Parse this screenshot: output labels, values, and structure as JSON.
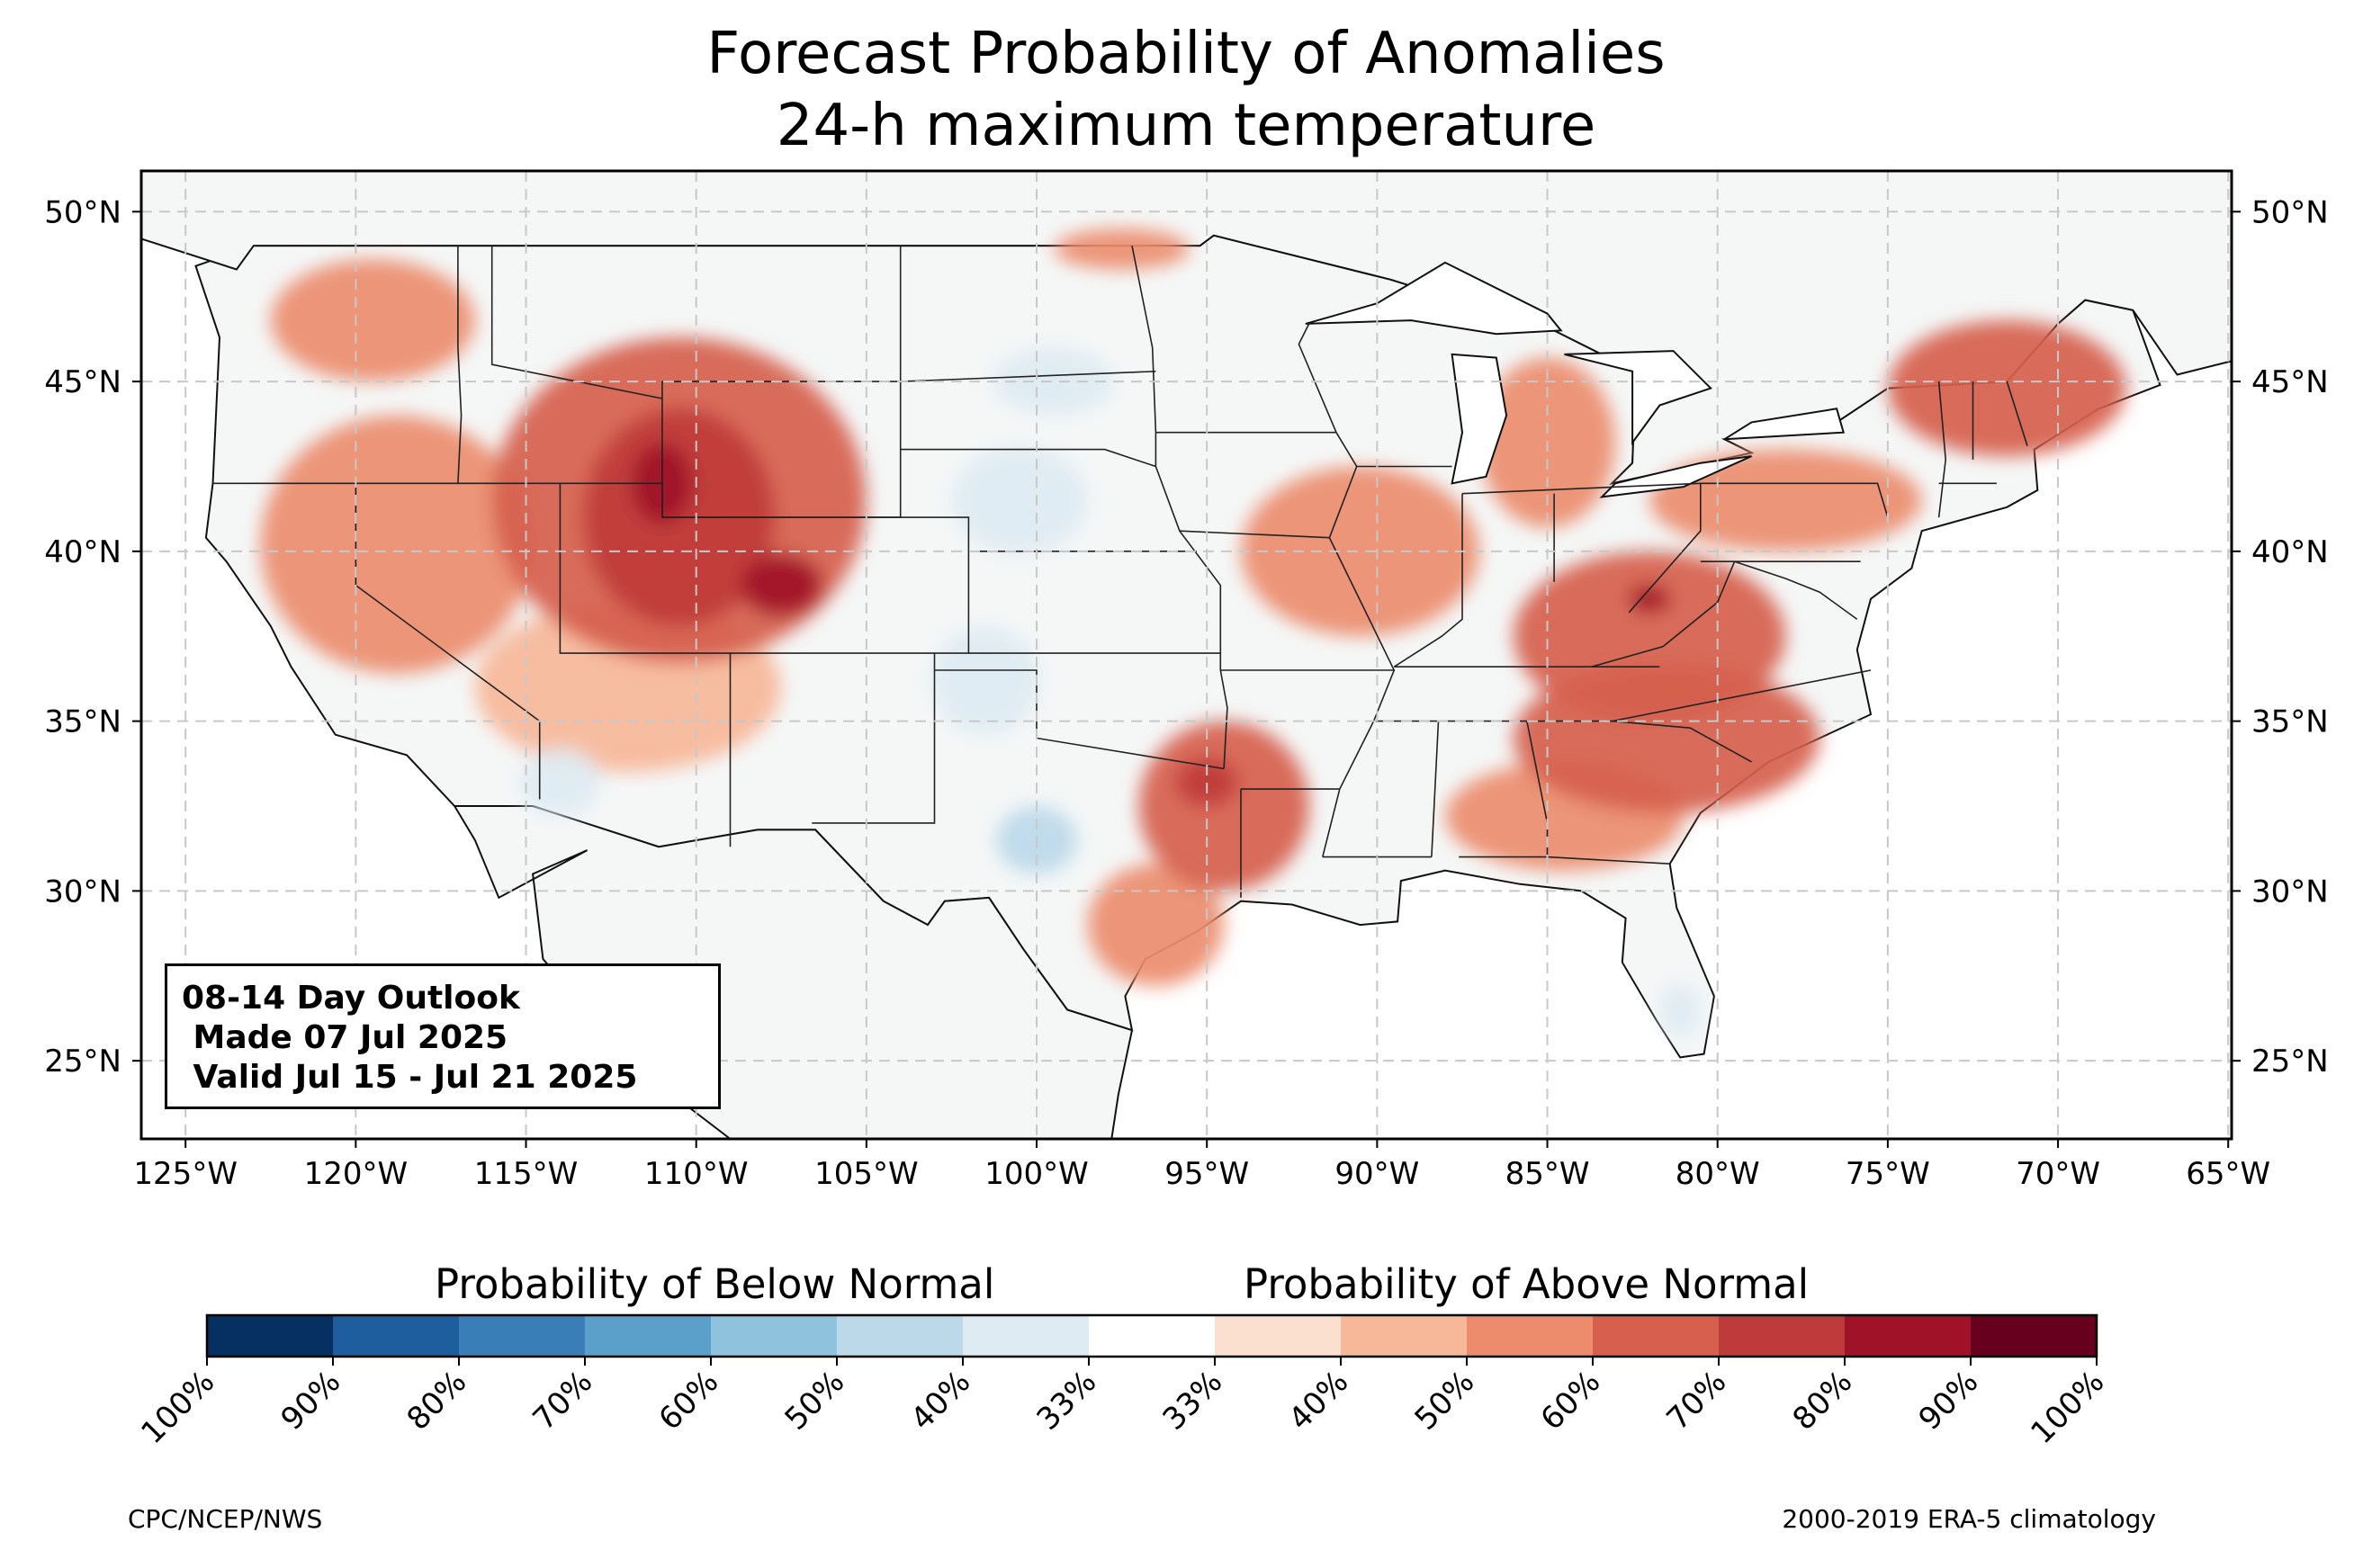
{
  "title_line1": "Forecast Probability of Anomalies",
  "title_line2": "24-h maximum temperature",
  "map": {
    "extent": {
      "lon_min": -126.3,
      "lon_max": -64.9,
      "lat_min": 22.7,
      "lat_max": 51.2
    },
    "grid": true,
    "lon_ticks": [
      {
        "lon": -125,
        "label": "125°W"
      },
      {
        "lon": -120,
        "label": "120°W"
      },
      {
        "lon": -115,
        "label": "115°W"
      },
      {
        "lon": -110,
        "label": "110°W"
      },
      {
        "lon": -105,
        "label": "105°W"
      },
      {
        "lon": -100,
        "label": "100°W"
      },
      {
        "lon": -95,
        "label": "95°W"
      },
      {
        "lon": -90,
        "label": "90°W"
      },
      {
        "lon": -85,
        "label": "85°W"
      },
      {
        "lon": -80,
        "label": "80°W"
      },
      {
        "lon": -75,
        "label": "75°W"
      },
      {
        "lon": -70,
        "label": "70°W"
      },
      {
        "lon": -65,
        "label": "65°W"
      }
    ],
    "lat_ticks": [
      {
        "lat": 50,
        "label": "50°N"
      },
      {
        "lat": 45,
        "label": "45°N"
      },
      {
        "lat": 40,
        "label": "40°N"
      },
      {
        "lat": 35,
        "label": "35°N"
      },
      {
        "lat": 30,
        "label": "30°N"
      },
      {
        "lat": 25,
        "label": "25°N"
      }
    ],
    "land_color": "#f5f7f7",
    "ocean_color": "#ffffff",
    "above_normal_areas": [
      {
        "region": "Pacific Northwest",
        "lon": -119.5,
        "lat": 46.8,
        "rx": 3.0,
        "ry": 1.8,
        "prob": 50
      },
      {
        "region": "California / Great Basin",
        "lon": -118.8,
        "lat": 40.2,
        "rx": 4.0,
        "ry": 3.8,
        "prob": 50
      },
      {
        "region": "Northern Rockies / Central Rockies",
        "lon": -110.5,
        "lat": 41.5,
        "rx": 5.5,
        "ry": 4.8,
        "prob": 60
      },
      {
        "region": "Wyoming / Utah / Colorado core",
        "lon": -110.5,
        "lat": 41.0,
        "rx": 2.8,
        "ry": 3.2,
        "prob": 70
      },
      {
        "region": "Western Wyoming peak",
        "lon": -111.0,
        "lat": 42.0,
        "rx": 0.9,
        "ry": 1.2,
        "prob": 80
      },
      {
        "region": "Colorado peak",
        "lon": -107.5,
        "lat": 39.0,
        "rx": 1.2,
        "ry": 0.9,
        "prob": 80
      },
      {
        "region": "Southwest / Arizona",
        "lon": -112.0,
        "lat": 36.0,
        "rx": 4.5,
        "ry": 2.5,
        "prob": 40
      },
      {
        "region": "Northern Plains border",
        "lon": -97.5,
        "lat": 48.9,
        "rx": 2.0,
        "ry": 0.6,
        "prob": 50
      },
      {
        "region": "Central Midwest",
        "lon": -90.5,
        "lat": 40.0,
        "rx": 3.5,
        "ry": 2.5,
        "prob": 50
      },
      {
        "region": "Ohio Valley / Appalachians",
        "lon": -82.0,
        "lat": 37.5,
        "rx": 4.0,
        "ry": 2.5,
        "prob": 60
      },
      {
        "region": "West Virginia peak",
        "lon": -82.0,
        "lat": 38.6,
        "rx": 0.6,
        "ry": 0.4,
        "prob": 80
      },
      {
        "region": "Tennessee / Carolinas",
        "lon": -81.5,
        "lat": 34.5,
        "rx": 4.5,
        "ry": 2.2,
        "prob": 60
      },
      {
        "region": "Southeast Georgia / Alabama",
        "lon": -84.5,
        "lat": 32.2,
        "rx": 3.5,
        "ry": 1.6,
        "prob": 50
      },
      {
        "region": "Great Lakes / Michigan",
        "lon": -85.0,
        "lat": 43.2,
        "rx": 2.0,
        "ry": 2.5,
        "prob": 50
      },
      {
        "region": "Pennsylvania / New York",
        "lon": -78.0,
        "lat": 41.5,
        "rx": 4.0,
        "ry": 1.5,
        "prob": 50
      },
      {
        "region": "Northern New England",
        "lon": -71.5,
        "lat": 44.8,
        "rx": 3.5,
        "ry": 2.0,
        "prob": 60
      },
      {
        "region": "East Texas / Louisiana",
        "lon": -94.5,
        "lat": 32.5,
        "rx": 2.5,
        "ry": 2.5,
        "prob": 60
      },
      {
        "region": "East Texas peak",
        "lon": -95.0,
        "lat": 33.2,
        "rx": 0.9,
        "ry": 0.7,
        "prob": 70
      },
      {
        "region": "Texas Gulf Coast",
        "lon": -96.5,
        "lat": 29.0,
        "rx": 2.0,
        "ry": 1.8,
        "prob": 50
      }
    ],
    "below_normal_areas": [
      {
        "region": "Dakotas",
        "lon": -99.5,
        "lat": 45.0,
        "rx": 1.8,
        "ry": 1.0,
        "prob": 40
      },
      {
        "region": "Nebraska / Kansas",
        "lon": -100.5,
        "lat": 41.5,
        "rx": 2.0,
        "ry": 1.6,
        "prob": 40
      },
      {
        "region": "Western Oklahoma / Texas Panhandle",
        "lon": -101.5,
        "lat": 36.2,
        "rx": 1.6,
        "ry": 1.6,
        "prob": 40
      },
      {
        "region": "Central Texas",
        "lon": -100.0,
        "lat": 31.5,
        "rx": 1.2,
        "ry": 1.0,
        "prob": 50
      },
      {
        "region": "Southern Arizona",
        "lon": -114.0,
        "lat": 33.2,
        "rx": 1.2,
        "ry": 1.0,
        "prob": 40
      },
      {
        "region": "South Florida",
        "lon": -81.1,
        "lat": 26.5,
        "rx": 0.6,
        "ry": 0.8,
        "prob": 40
      }
    ]
  },
  "colorbar": {
    "below_title": "Probability of Below Normal",
    "above_title": "Probability of Above Normal",
    "colors": [
      "#053061",
      "#1e5e9e",
      "#3a7eb8",
      "#5aa0ca",
      "#8fc2dd",
      "#bcd9ea",
      "#deebf2",
      "#ffffff",
      "#fbe0d0",
      "#f7b799",
      "#ec8c6c",
      "#d6604d",
      "#bf3a3a",
      "#9f1228",
      "#67001f"
    ],
    "labels": [
      "100%",
      "90%",
      "80%",
      "70%",
      "60%",
      "50%",
      "40%",
      "33%",
      "33%",
      "40%",
      "50%",
      "60%",
      "70%",
      "80%",
      "90%",
      "100%"
    ]
  },
  "infobox": {
    "line1": "08-14 Day Outlook",
    "line2": " Made 07 Jul 2025",
    "line3": " Valid Jul 15 - Jul 21 2025"
  },
  "credit_left": "CPC/NCEP/NWS",
  "credit_right": "2000-2019 ERA-5 climatology"
}
